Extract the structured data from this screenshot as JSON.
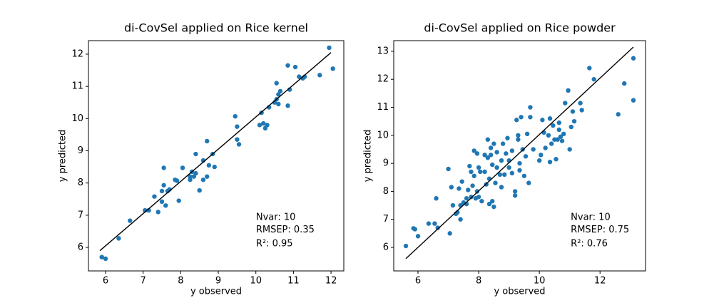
{
  "chart_data": [
    {
      "type": "scatter",
      "title": "di-CovSel applied on Rice kernel",
      "x_label": "y observed",
      "y_label": "y predicted",
      "color": "#1f77b4",
      "x": [
        5.9,
        6.0,
        6.35,
        6.65,
        7.05,
        7.15,
        7.3,
        7.4,
        7.5,
        7.5,
        7.55,
        7.55,
        7.6,
        7.65,
        7.7,
        7.85,
        7.9,
        7.95,
        8.05,
        8.25,
        8.25,
        8.3,
        8.35,
        8.4,
        8.4,
        8.5,
        8.6,
        8.6,
        8.7,
        8.7,
        8.75,
        8.85,
        8.9,
        9.45,
        9.5,
        9.5,
        9.55,
        10.1,
        10.15,
        10.2,
        10.25,
        10.3,
        10.35,
        10.5,
        10.55,
        10.55,
        10.6,
        10.6,
        10.65,
        10.85,
        10.85,
        10.9,
        11.05,
        11.15,
        11.25,
        11.3,
        11.7,
        11.95,
        12.05
      ],
      "y": [
        5.7,
        5.65,
        6.28,
        6.83,
        7.15,
        7.15,
        7.58,
        7.1,
        7.75,
        7.42,
        8.47,
        7.93,
        7.3,
        7.75,
        7.8,
        8.1,
        8.07,
        7.45,
        8.47,
        8.2,
        8.1,
        8.35,
        8.2,
        8.3,
        8.9,
        7.77,
        8.1,
        8.7,
        9.3,
        8.2,
        8.55,
        8.9,
        8.5,
        10.07,
        9.75,
        9.35,
        9.2,
        9.8,
        10.18,
        9.85,
        9.7,
        9.8,
        10.35,
        10.5,
        10.6,
        11.1,
        10.75,
        10.45,
        10.85,
        11.65,
        10.4,
        10.9,
        11.6,
        11.3,
        11.25,
        11.3,
        11.35,
        12.2,
        11.55
      ],
      "line": {
        "x": [
          5.85,
          12.0
        ],
        "y": [
          5.9,
          12.05
        ],
        "color": "#000000"
      },
      "annotations": [
        "Nvar: 10",
        "RMSEP: 0.35",
        "R²: 0.95"
      ],
      "xlim": [
        5.545,
        12.34
      ],
      "ylim": [
        5.27,
        12.42
      ],
      "xticks": [
        6,
        7,
        8,
        9,
        10,
        11,
        12
      ],
      "yticks": [
        6,
        7,
        8,
        9,
        10,
        11,
        12
      ]
    },
    {
      "type": "scatter",
      "title": "di-CovSel applied on Rice powder",
      "x_label": "y observed",
      "y_label": "y predicted",
      "color": "#1f77b4",
      "x": [
        5.6,
        5.85,
        5.9,
        6.0,
        6.35,
        6.55,
        6.6,
        6.65,
        7.0,
        7.05,
        7.1,
        7.15,
        7.25,
        7.3,
        7.35,
        7.4,
        7.4,
        7.45,
        7.5,
        7.6,
        7.6,
        7.65,
        7.7,
        7.75,
        7.75,
        7.8,
        7.85,
        7.85,
        7.9,
        7.95,
        7.95,
        8.0,
        8.0,
        8.05,
        8.1,
        8.2,
        8.2,
        8.25,
        8.3,
        8.3,
        8.35,
        8.35,
        8.4,
        8.4,
        8.45,
        8.45,
        8.5,
        8.5,
        8.55,
        8.6,
        8.6,
        8.7,
        8.75,
        8.75,
        8.8,
        8.85,
        8.9,
        8.95,
        9.0,
        9.0,
        9.1,
        9.1,
        9.2,
        9.2,
        9.25,
        9.3,
        9.3,
        9.35,
        9.35,
        9.4,
        9.45,
        9.5,
        9.55,
        9.6,
        9.65,
        9.7,
        9.7,
        9.8,
        10.0,
        10.05,
        10.1,
        10.15,
        10.2,
        10.3,
        10.35,
        10.35,
        10.4,
        10.45,
        10.5,
        10.55,
        10.6,
        10.65,
        10.65,
        10.7,
        10.75,
        10.8,
        10.85,
        10.95,
        11.0,
        11.05,
        11.1,
        11.15,
        11.35,
        11.4,
        11.65,
        11.8,
        12.6,
        12.8,
        13.1,
        13.1
      ],
      "y": [
        6.05,
        6.68,
        6.65,
        6.4,
        6.85,
        6.85,
        7.75,
        6.7,
        8.8,
        6.5,
        8.15,
        7.5,
        7.2,
        7.25,
        8.1,
        7.0,
        7.5,
        8.35,
        7.6,
        7.75,
        7.55,
        8.05,
        8.9,
        8.7,
        7.8,
        8.2,
        9.45,
        8.55,
        7.75,
        8.0,
        9.35,
        8.85,
        7.8,
        8.7,
        7.65,
        9.3,
        8.7,
        8.25,
        9.85,
        9.2,
        8.45,
        7.55,
        9.55,
        9.3,
        8.95,
        7.65,
        7.45,
        9.7,
        8.3,
        8.85,
        9.4,
        8.6,
        9.1,
        8.15,
        9.7,
        8.6,
        9.35,
        9.9,
        8.85,
        9.1,
        8.65,
        9.45,
        7.85,
        8.0,
        10.55,
        10.0,
        9.85,
        9.0,
        8.75,
        10.65,
        9.5,
        8.55,
        9.25,
        10.05,
        8.3,
        11.0,
        10.65,
        9.5,
        9.1,
        9.3,
        10.55,
        10.1,
        9.55,
        10.0,
        10.6,
        9.05,
        9.7,
        10.35,
        9.85,
        9.15,
        9.85,
        10.45,
        10.2,
        9.95,
        9.8,
        10.05,
        11.15,
        11.6,
        9.5,
        10.3,
        10.85,
        10.5,
        11.15,
        10.9,
        12.4,
        12.0,
        10.75,
        11.85,
        12.75,
        11.25
      ],
      "line": {
        "x": [
          5.6,
          13.1
        ],
        "y": [
          5.6,
          13.15
        ],
        "color": "#000000"
      },
      "annotations": [
        "Nvar: 10",
        "RMSEP: 0.75",
        "R²: 0.76"
      ],
      "xlim": [
        5.2,
        13.5
      ],
      "ylim": [
        5.16,
        13.38
      ],
      "xticks": [
        6,
        8,
        10,
        12
      ],
      "yticks": [
        6,
        7,
        8,
        9,
        10,
        11,
        12,
        13
      ]
    }
  ]
}
